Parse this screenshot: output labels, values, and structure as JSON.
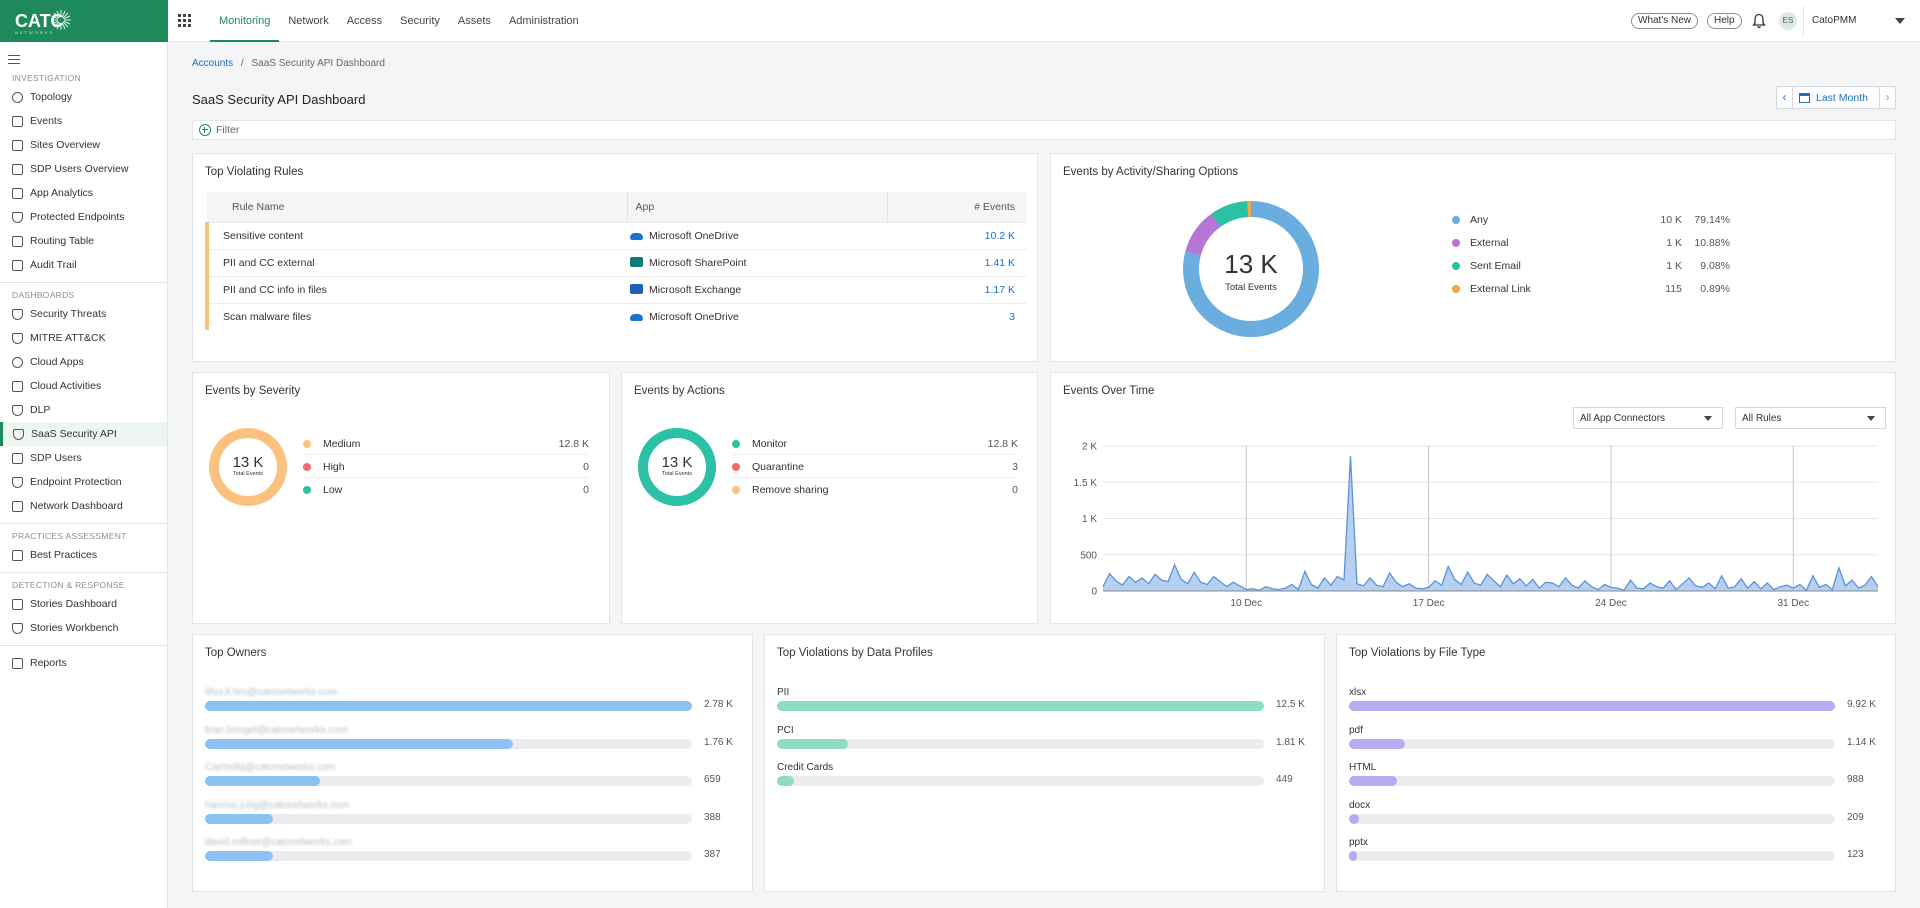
{
  "brand": {
    "name": "CATO",
    "tagline": "NETWORKS"
  },
  "topnav": {
    "tabs": [
      {
        "label": "Monitoring",
        "active": true
      },
      {
        "label": "Network"
      },
      {
        "label": "Access"
      },
      {
        "label": "Security"
      },
      {
        "label": "Assets"
      },
      {
        "label": "Administration"
      }
    ],
    "whats_new": "What's New",
    "help": "Help",
    "avatar": "ES",
    "user": "CatoPMM"
  },
  "sidebar": {
    "sections": [
      {
        "title": "INVESTIGATION",
        "items": [
          "Topology",
          "Events",
          "Sites Overview",
          "SDP Users Overview",
          "App Analytics",
          "Protected Endpoints",
          "Routing Table",
          "Audit Trail"
        ]
      },
      {
        "title": "DASHBOARDS",
        "items": [
          "Security Threats",
          "MITRE ATT&CK",
          "Cloud Apps",
          "Cloud Activities",
          "DLP",
          "SaaS Security API",
          "SDP Users",
          "Endpoint Protection",
          "Network Dashboard"
        ]
      },
      {
        "title": "PRACTICES ASSESSMENT",
        "items": [
          "Best Practices"
        ]
      },
      {
        "title": "DETECTION & RESPONSE",
        "items": [
          "Stories Dashboard",
          "Stories Workbench"
        ]
      },
      {
        "title": "",
        "items": [
          "Reports"
        ]
      }
    ],
    "active_item": "SaaS Security API"
  },
  "breadcrumb": {
    "root": "Accounts",
    "sep": "/",
    "current": "SaaS Security API Dashboard"
  },
  "page_title": "SaaS Security API Dashboard",
  "date_range": "Last Month",
  "filter_label": "Filter",
  "top_violating_rules": {
    "title": "Top Violating Rules",
    "columns": [
      "Rule Name",
      "App",
      "# Events"
    ],
    "rows": [
      {
        "rule": "Sensitive content",
        "app": "Microsoft OneDrive",
        "app_icon": "onedrive-icon",
        "events": "10.2 K"
      },
      {
        "rule": "PII and CC external",
        "app": "Microsoft SharePoint",
        "app_icon": "sharepoint-icon",
        "events": "1.41 K"
      },
      {
        "rule": "PII and CC info in files",
        "app": "Microsoft Exchange",
        "app_icon": "exchange-icon",
        "events": "1.17 K"
      },
      {
        "rule": "Scan malware files",
        "app": "Microsoft OneDrive",
        "app_icon": "onedrive-icon",
        "events": "3"
      }
    ]
  },
  "events_by_activity": {
    "title": "Events by Activity/Sharing Options",
    "total": "13 K",
    "total_label": "Total Events",
    "items": [
      {
        "name": "Any",
        "value": "10 K",
        "pct": "79.14%",
        "share": 79.14,
        "color": "#6aaee0"
      },
      {
        "name": "External",
        "value": "1 K",
        "pct": "10.88%",
        "share": 10.88,
        "color": "#b576d6"
      },
      {
        "name": "Sent Email",
        "value": "1 K",
        "pct": "9.08%",
        "share": 9.08,
        "color": "#2cc0a5"
      },
      {
        "name": "External Link",
        "value": "115",
        "pct": "0.89%",
        "share": 0.89,
        "color": "#f2a64a"
      }
    ]
  },
  "events_by_severity": {
    "title": "Events by Severity",
    "total": "13 K",
    "total_label": "Total Events",
    "color": "#fbc27f",
    "items": [
      {
        "name": "Medium",
        "value": "12.8 K",
        "color": "#fbc27f"
      },
      {
        "name": "High",
        "value": "0",
        "color": "#ef6c6c"
      },
      {
        "name": "Low",
        "value": "0",
        "color": "#2cc0a5"
      }
    ]
  },
  "events_by_actions": {
    "title": "Events by Actions",
    "total": "13 K",
    "total_label": "Total Events",
    "color": "#2cc0a5",
    "items": [
      {
        "name": "Monitor",
        "value": "12.8 K",
        "color": "#2cc0a5"
      },
      {
        "name": "Quarantine",
        "value": "3",
        "color": "#ef6c6c"
      },
      {
        "name": "Remove sharing",
        "value": "0",
        "color": "#fbc27f"
      }
    ]
  },
  "events_over_time": {
    "title": "Events Over Time",
    "connector_select": "All App Connectors",
    "rules_select": "All Rules"
  },
  "chart_data": {
    "type": "area",
    "title": "Events Over Time",
    "xlabel": "",
    "ylabel": "",
    "ylim": [
      0,
      2000
    ],
    "yticks": [
      {
        "v": 0,
        "label": "0"
      },
      {
        "v": 500,
        "label": "500"
      },
      {
        "v": 1000,
        "label": "1 K"
      },
      {
        "v": 1500,
        "label": "1.5 K"
      },
      {
        "v": 2000,
        "label": "2 K"
      }
    ],
    "xticks": [
      {
        "i": 22,
        "label": "10 Dec"
      },
      {
        "i": 50,
        "label": "17 Dec"
      },
      {
        "i": 78,
        "label": "24 Dec"
      },
      {
        "i": 106,
        "label": "31 Dec"
      }
    ],
    "grid": true,
    "color": "#5b93d6",
    "fill": "#a9c8ef",
    "values": [
      60,
      240,
      140,
      80,
      200,
      120,
      180,
      100,
      230,
      150,
      130,
      360,
      160,
      100,
      260,
      120,
      90,
      200,
      130,
      60,
      120,
      70,
      20,
      30,
      10,
      60,
      30,
      20,
      40,
      90,
      20,
      270,
      90,
      40,
      180,
      80,
      200,
      150,
      1860,
      100,
      70,
      180,
      80,
      60,
      250,
      120,
      60,
      100,
      40,
      30,
      50,
      140,
      80,
      340,
      160,
      90,
      260,
      110,
      80,
      230,
      140,
      60,
      220,
      100,
      170,
      70,
      160,
      40,
      120,
      110,
      60,
      180,
      80,
      40,
      140,
      60,
      20,
      90,
      50,
      40,
      10,
      150,
      40,
      30,
      110,
      60,
      40,
      140,
      20,
      100,
      180,
      70,
      50,
      110,
      30,
      210,
      40,
      60,
      170,
      40,
      130,
      30,
      110,
      20,
      60,
      80,
      40,
      90,
      10,
      210,
      50,
      90,
      20,
      320,
      70,
      150,
      40,
      80,
      200,
      60
    ],
    "value_unit": "events"
  },
  "top_owners": {
    "title": "Top Owners",
    "max": 2780,
    "color": "#8cc2f2",
    "items": [
      {
        "name": "lihui.li.hm@catonetworks.com",
        "value": 2780,
        "label": "2.78 K"
      },
      {
        "name": "liran.bringel@catonetworks.com",
        "value": 1760,
        "label": "1.76 K"
      },
      {
        "name": "Carmella@catonetworks.com",
        "value": 659,
        "label": "659"
      },
      {
        "name": "hannuy.jung@catonetworks.com",
        "value": 388,
        "label": "388"
      },
      {
        "name": "david.millner@catonetworks.com",
        "value": 387,
        "label": "387"
      }
    ]
  },
  "top_violations_profiles": {
    "title": "Top Violations by Data Profiles",
    "max": 12500,
    "color": "#8fdcc0",
    "items": [
      {
        "name": "PII",
        "value": 12500,
        "label": "12.5 K"
      },
      {
        "name": "PCI",
        "value": 1810,
        "label": "1.81 K"
      },
      {
        "name": "Credit Cards",
        "value": 449,
        "label": "449"
      }
    ]
  },
  "top_violations_filetype": {
    "title": "Top Violations by File Type",
    "max": 9920,
    "color": "#b5acf2",
    "items": [
      {
        "name": "xlsx",
        "value": 9920,
        "label": "9.92 K"
      },
      {
        "name": "pdf",
        "value": 1140,
        "label": "1.14 K"
      },
      {
        "name": "HTML",
        "value": 988,
        "label": "988"
      },
      {
        "name": "docx",
        "value": 209,
        "label": "209"
      },
      {
        "name": "pptx",
        "value": 123,
        "label": "123"
      }
    ]
  }
}
